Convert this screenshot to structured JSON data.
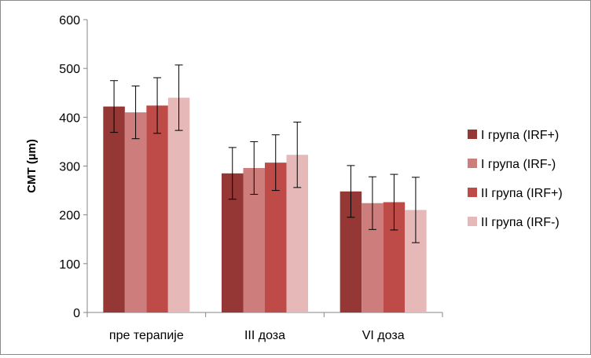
{
  "chart_data": {
    "type": "bar",
    "categories": [
      "пре терапије",
      "III доза",
      "VI доза"
    ],
    "ylabel": "CMT (µm)",
    "ylim": [
      0,
      600
    ],
    "yticks": [
      0,
      100,
      200,
      300,
      400,
      500,
      600
    ],
    "grid": false,
    "legend_position": "right",
    "error_bars": true,
    "series": [
      {
        "name": "I група (IRF+)",
        "color": "#953735",
        "values": [
          422,
          285,
          248
        ],
        "errors": [
          53,
          53,
          53
        ]
      },
      {
        "name": "I група (IRF-)",
        "color": "#cd7e7c",
        "values": [
          410,
          296,
          224
        ],
        "errors": [
          54,
          54,
          54
        ]
      },
      {
        "name": "II група (IRF+)",
        "color": "#be4b48",
        "values": [
          424,
          307,
          226
        ],
        "errors": [
          57,
          57,
          57
        ]
      },
      {
        "name": "II група (IRF-)",
        "color": "#e6b9b8",
        "values": [
          440,
          323,
          210
        ],
        "errors": [
          67,
          67,
          67
        ]
      }
    ]
  }
}
